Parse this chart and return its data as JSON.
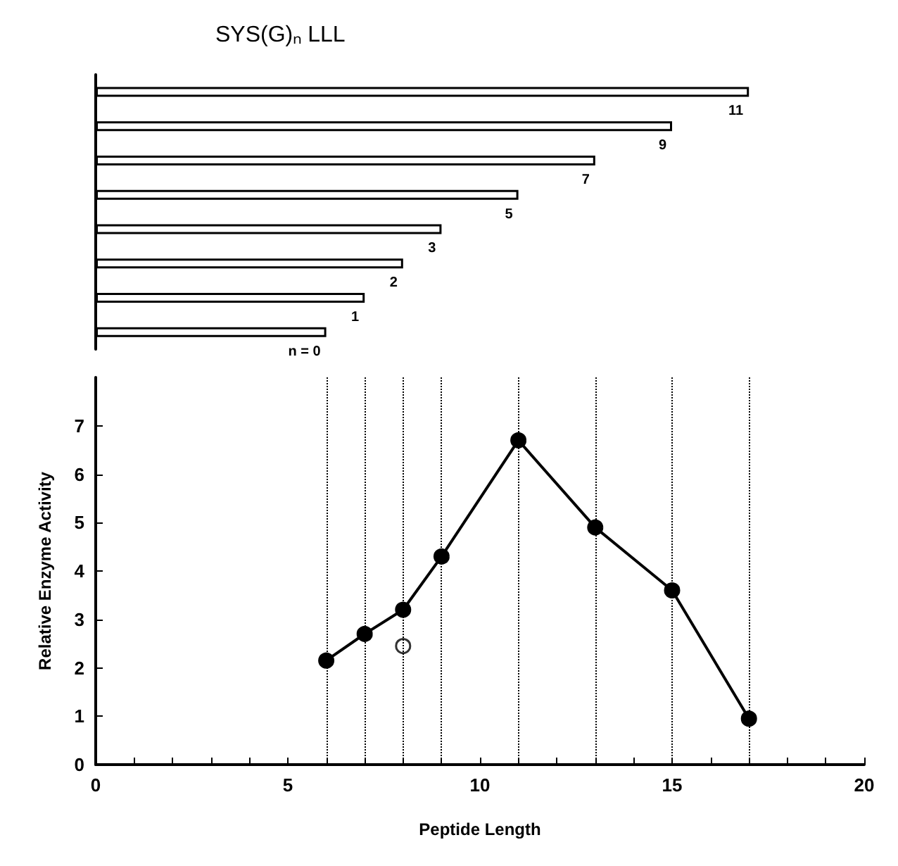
{
  "chart_data": [
    {
      "type": "bar",
      "title": "SYS(G)ₙ LLL",
      "orientation": "horizontal",
      "categories": [
        null,
        null,
        null,
        null,
        null,
        null,
        null,
        null
      ],
      "values": [
        17,
        15,
        13,
        11,
        9,
        8,
        7,
        6
      ],
      "color": "#ffffff",
      "annotations": [
        "11",
        "9",
        "7",
        "5",
        "3",
        "2",
        "1",
        "n = 0"
      ],
      "xlim": [
        0,
        20
      ],
      "grid": false
    },
    {
      "type": "line",
      "x": [
        6,
        7,
        8,
        9,
        11,
        13,
        15,
        17
      ],
      "series": [
        {
          "color": "#000000",
          "marker": "circle",
          "values": [
            2.15,
            2.7,
            3.2,
            4.3,
            6.7,
            4.9,
            3.6,
            0.95
          ]
        },
        {
          "type": "scatter",
          "x": [
            8
          ],
          "values": [
            2.45
          ],
          "color": "#ffffff",
          "marker": "circle"
        }
      ],
      "xlabel": "Peptide Length",
      "ylabel": "Relative Enzyme Activity",
      "xlim": [
        0,
        20
      ],
      "xticks": [
        0,
        {
          "value": 1,
          "label": null
        },
        {
          "value": 2,
          "label": null
        },
        {
          "value": 3,
          "label": null
        },
        {
          "value": 4,
          "label": null
        },
        5,
        {
          "value": 6,
          "label": null
        },
        {
          "value": 7,
          "label": null
        },
        {
          "value": 8,
          "label": null
        },
        {
          "value": 9,
          "label": null
        },
        10,
        {
          "value": 11,
          "label": null
        },
        {
          "value": 12,
          "label": null
        },
        {
          "value": 13,
          "label": null
        },
        {
          "value": 14,
          "label": null
        },
        15,
        {
          "value": 16,
          "label": null
        },
        {
          "value": 17,
          "label": null
        },
        {
          "value": 18,
          "label": null
        },
        {
          "value": 19,
          "label": null
        },
        20
      ],
      "ylim": [
        0,
        8
      ],
      "yticks": [
        0,
        1,
        2,
        3,
        4,
        5,
        6,
        7
      ],
      "grid": false,
      "ref_lines": [
        {
          "axis": "x",
          "value": 6,
          "color": "#000000",
          "line_style": "dotted"
        },
        {
          "axis": "x",
          "value": 7,
          "color": "#000000",
          "line_style": "dotted"
        },
        {
          "axis": "x",
          "value": 8,
          "color": "#000000",
          "line_style": "dotted"
        },
        {
          "axis": "x",
          "value": 9,
          "color": "#000000",
          "line_style": "dotted"
        },
        {
          "axis": "x",
          "value": 11,
          "color": "#000000",
          "line_style": "dotted"
        },
        {
          "axis": "x",
          "value": 13,
          "color": "#000000",
          "line_style": "dotted"
        },
        {
          "axis": "x",
          "value": 15,
          "color": "#000000",
          "line_style": "dotted"
        },
        {
          "axis": "x",
          "value": 17,
          "color": "#000000",
          "line_style": "dotted"
        }
      ]
    }
  ]
}
